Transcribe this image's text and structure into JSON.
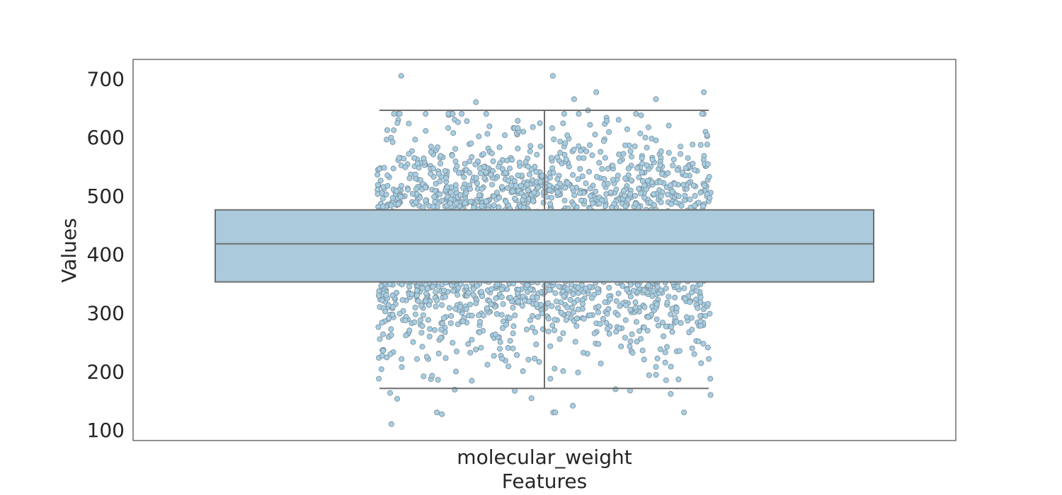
{
  "chart_data": {
    "type": "box",
    "overlay": "strip (jittered points)",
    "xlabel": "Features",
    "ylabel": "Values",
    "categories": [
      "molecular_weight"
    ],
    "ylim": [
      82,
      733
    ],
    "yticks": [
      100,
      200,
      300,
      400,
      500,
      600,
      700
    ],
    "grid": false,
    "box": {
      "category": "molecular_weight",
      "q1": 353,
      "median": 418,
      "q3": 476,
      "whisker_low": 171,
      "whisker_high": 646
    },
    "strip": {
      "point_count_approx": 3000,
      "min_value": 110,
      "max_value": 705,
      "notable_extremes": [
        705,
        705,
        677,
        677,
        665,
        665,
        660,
        646,
        127,
        110
      ]
    },
    "colors": {
      "box_fill": "#abcbdd",
      "box_edge": "#6e6e6e",
      "point_fill": "#a6cee3",
      "point_edge": "#7a8b96",
      "axis_frame": "#262626",
      "text": "#262626"
    }
  }
}
